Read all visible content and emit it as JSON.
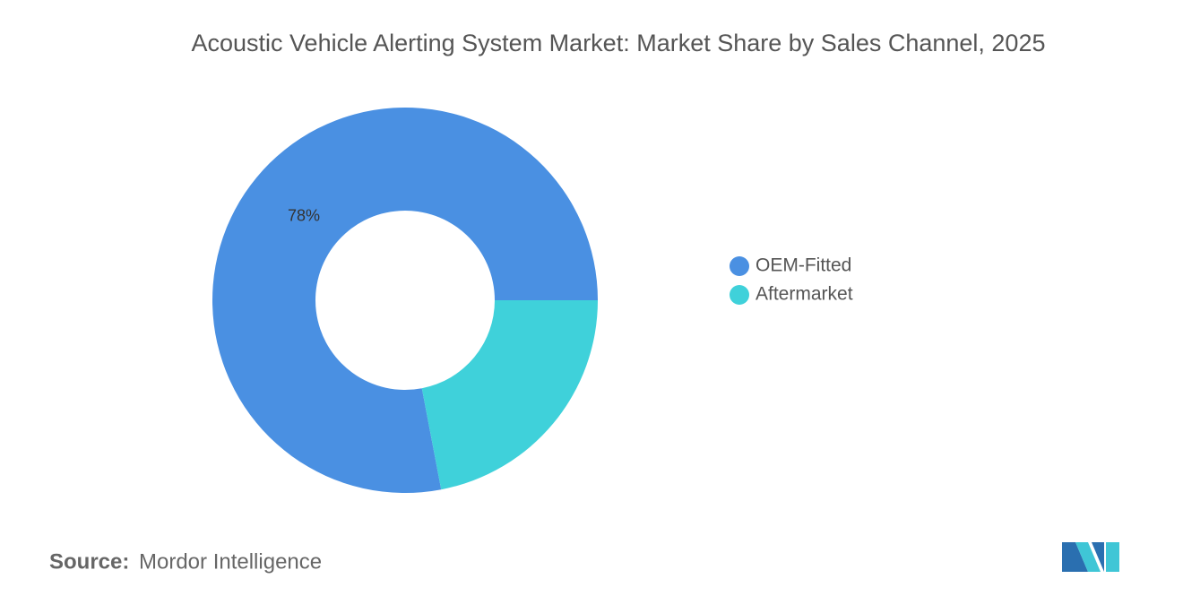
{
  "chart_data": {
    "type": "donut",
    "title": "Acoustic Vehicle Alerting System Market: Market Share by Sales Channel, 2025",
    "categories": [
      "OEM-Fitted",
      "Aftermarket"
    ],
    "values": [
      78,
      22
    ],
    "value_labels": [
      "78%",
      null
    ],
    "colors": [
      "#4a90e2",
      "#3fd1da"
    ],
    "legend_position": "right"
  },
  "source": {
    "label": "Source:",
    "text": "Mordor Intelligence"
  }
}
